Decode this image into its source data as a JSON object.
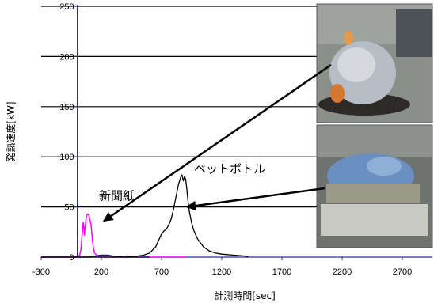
{
  "chart_data": {
    "type": "line",
    "title": "",
    "xlabel": "計測時間[sec]",
    "ylabel": "発熱速度[kW]",
    "xlim": [
      -300,
      2950
    ],
    "ylim": [
      0,
      250
    ],
    "x_ticks": [
      -300,
      200,
      700,
      1200,
      1700,
      2200,
      2700
    ],
    "y_ticks": [
      0,
      50,
      100,
      150,
      200,
      250
    ],
    "grid": "horizontal",
    "legend": "none",
    "series": [
      {
        "color": "#ff00ff",
        "x": [
          -300,
          0,
          20,
          30,
          40,
          50,
          60,
          65,
          75,
          85,
          95,
          105,
          115,
          125,
          135,
          145,
          160,
          180,
          200,
          230,
          260,
          300,
          400,
          600,
          800,
          900
        ],
        "y": [
          0,
          0,
          2,
          8,
          22,
          35,
          22,
          30,
          40,
          43,
          42,
          37,
          32,
          18,
          8,
          4,
          2,
          1,
          0,
          0,
          0,
          0,
          0,
          0,
          0,
          0
        ]
      },
      {
        "color": "#1a1a66",
        "x": [
          -300,
          0,
          100,
          150,
          200,
          250,
          300,
          400,
          500,
          600
        ],
        "y": [
          0,
          0,
          0,
          1,
          2,
          2,
          1,
          0,
          0,
          0
        ]
      },
      {
        "color": "#000000",
        "x": [
          -300,
          400,
          500,
          550,
          600,
          650,
          680,
          700,
          720,
          740,
          760,
          780,
          800,
          820,
          840,
          850,
          860,
          870,
          880,
          890,
          900,
          910,
          920,
          930,
          950,
          970,
          1000,
          1050,
          1100,
          1150,
          1200,
          1300,
          1400,
          1420
        ],
        "y": [
          0,
          0,
          1,
          2,
          4,
          10,
          18,
          23,
          26,
          28,
          32,
          38,
          48,
          60,
          72,
          76,
          80,
          82,
          76,
          80,
          78,
          68,
          56,
          46,
          34,
          26,
          18,
          10,
          6,
          4,
          3,
          2,
          1,
          0
        ]
      }
    ],
    "annotations": [
      {
        "text": "新聞紙",
        "x": 180,
        "y": 57
      },
      {
        "text": "ペットボトル",
        "x": 970,
        "y": 84
      }
    ]
  }
}
